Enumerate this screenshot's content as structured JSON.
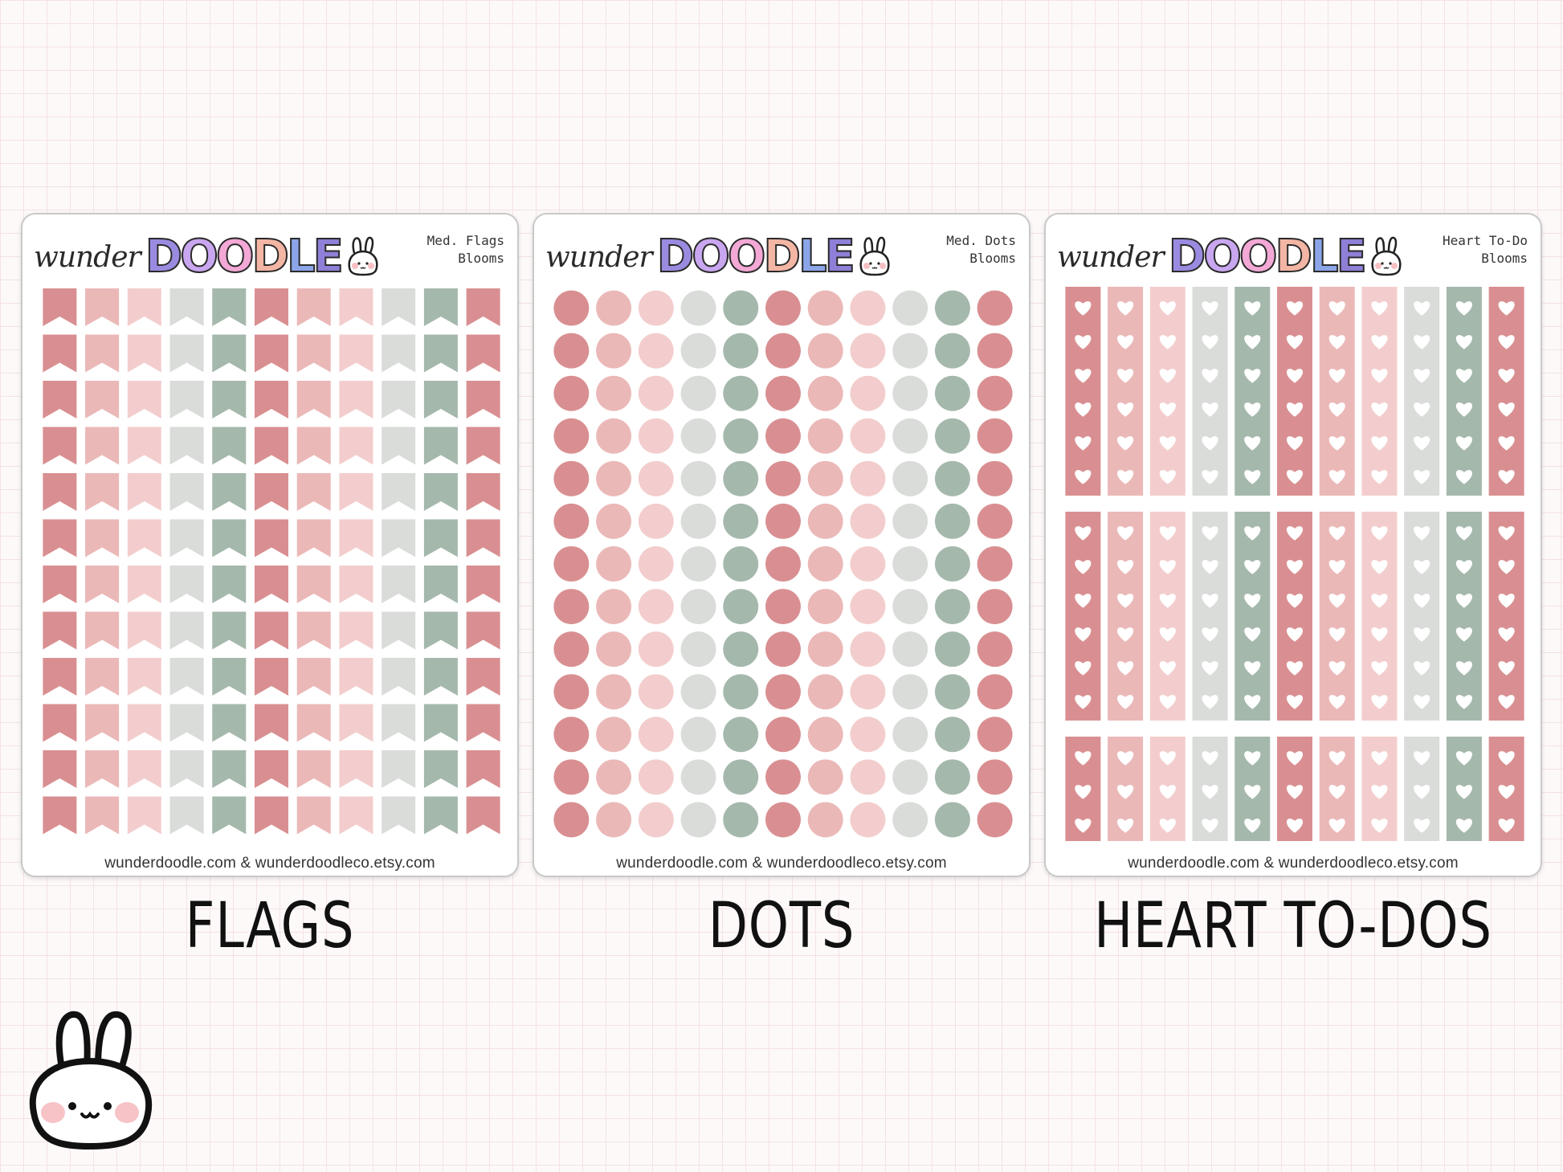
{
  "brand": {
    "script": "wunder",
    "doodle_letters": [
      "D",
      "O",
      "O",
      "D",
      "L",
      "E"
    ]
  },
  "colors": {
    "deep_rose": "#d98f91",
    "pink": "#ebb8b8",
    "blush": "#f3cdcd",
    "light_gray": "#d9dcd9",
    "sage": "#a5b8ac",
    "heart": "#ffffff"
  },
  "column_colors": [
    "deep_rose",
    "pink",
    "blush",
    "light_gray",
    "sage",
    "deep_rose",
    "pink",
    "blush",
    "light_gray",
    "sage",
    "deep_rose"
  ],
  "sheets": [
    {
      "title_line1": "Med. Flags",
      "title_line2": "Blooms",
      "footer": "wunderdoodle.com & wunderdoodleco.etsy.com",
      "caption": "FLAGS",
      "type": "flags"
    },
    {
      "title_line1": "Med. Dots",
      "title_line2": "Blooms",
      "footer": "wunderdoodle.com & wunderdoodleco.etsy.com",
      "caption": "DOTS",
      "type": "dots"
    },
    {
      "title_line1": "Heart To-Do",
      "title_line2": "Blooms",
      "footer": "wunderdoodle.com & wunderdoodleco.etsy.com",
      "caption": "HEART TO-DOS",
      "type": "hearts"
    }
  ],
  "mascot": {
    "icon": "bunny-face-icon"
  }
}
